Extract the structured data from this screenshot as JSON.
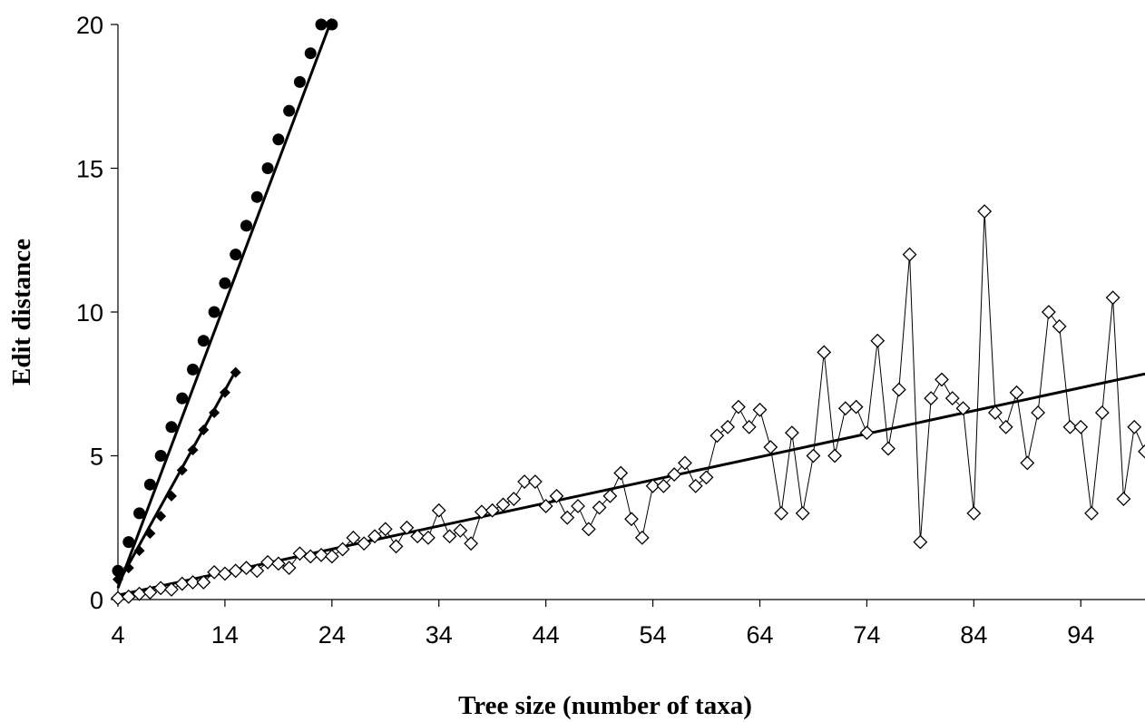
{
  "chart_data": {
    "type": "scatter",
    "xlabel": "Tree size (number of taxa)",
    "ylabel": "Edit distance",
    "xlim": [
      4,
      100
    ],
    "ylim": [
      0,
      20
    ],
    "xticks": [
      4,
      14,
      24,
      34,
      44,
      54,
      64,
      74,
      84,
      94
    ],
    "yticks": [
      0,
      5,
      10,
      15,
      20
    ],
    "grid": false,
    "legend": "none",
    "series": [
      {
        "marker": "filled-circle",
        "color": "#000000",
        "x": [
          4,
          5,
          6,
          7,
          8,
          9,
          10,
          11,
          12,
          13,
          14,
          15,
          16,
          17,
          18,
          19,
          20,
          21,
          22,
          23,
          24
        ],
        "y": [
          1,
          2,
          3,
          4,
          5,
          6,
          7,
          8,
          9,
          10,
          11,
          12,
          13,
          14,
          15,
          16,
          17,
          18,
          19,
          20,
          20
        ],
        "trendline": {
          "x": [
            4,
            24
          ],
          "y": [
            0.4,
            20.2
          ]
        }
      },
      {
        "marker": "filled-diamond",
        "color": "#000000",
        "x": [
          4,
          5,
          6,
          7,
          8,
          9,
          10,
          11,
          12,
          13,
          14,
          15
        ],
        "y": [
          0.7,
          1.1,
          1.7,
          2.3,
          2.9,
          3.6,
          4.5,
          5.2,
          5.9,
          6.5,
          7.2,
          7.9
        ],
        "trendline": {
          "x": [
            4,
            15
          ],
          "y": [
            0.55,
            7.95
          ]
        }
      },
      {
        "marker": "open-diamond",
        "color": "#000000",
        "x": [
          4,
          5,
          6,
          7,
          8,
          9,
          10,
          11,
          12,
          13,
          14,
          15,
          16,
          17,
          18,
          19,
          20,
          21,
          22,
          23,
          24,
          25,
          26,
          27,
          28,
          29,
          30,
          31,
          32,
          33,
          34,
          35,
          36,
          37,
          38,
          39,
          40,
          41,
          42,
          43,
          44,
          45,
          46,
          47,
          48,
          49,
          50,
          51,
          52,
          53,
          54,
          55,
          56,
          57,
          58,
          59,
          60,
          61,
          62,
          63,
          64,
          65,
          66,
          67,
          68,
          69,
          70,
          71,
          72,
          73,
          74,
          75,
          76,
          77,
          78,
          79,
          80,
          81,
          82,
          83,
          84,
          85,
          86,
          87,
          88,
          89,
          90,
          91,
          92,
          93,
          94,
          95,
          96,
          97,
          98,
          99,
          100
        ],
        "y": [
          0.05,
          0.1,
          0.2,
          0.25,
          0.4,
          0.35,
          0.55,
          0.6,
          0.6,
          0.95,
          0.9,
          1.0,
          1.1,
          1.0,
          1.3,
          1.25,
          1.1,
          1.6,
          1.5,
          1.55,
          1.5,
          1.75,
          2.15,
          1.95,
          2.2,
          2.45,
          1.85,
          2.5,
          2.2,
          2.15,
          3.1,
          2.2,
          2.4,
          1.95,
          3.05,
          3.1,
          3.3,
          3.5,
          4.1,
          4.1,
          3.25,
          3.6,
          2.85,
          3.25,
          2.45,
          3.2,
          3.6,
          4.4,
          2.8,
          2.15,
          3.95,
          3.95,
          4.35,
          4.75,
          3.95,
          4.25,
          5.7,
          6.0,
          6.7,
          6.0,
          6.6,
          5.3,
          3.0,
          5.8,
          3.0,
          5.0,
          8.6,
          5.0,
          6.65,
          6.7,
          5.8,
          9.0,
          5.25,
          7.3,
          12.0,
          2.0,
          7.0,
          7.65,
          7.0,
          6.65,
          3.0,
          13.5,
          6.5,
          6.0,
          7.2,
          4.75,
          6.5,
          10.0,
          9.5,
          6.0,
          6.0,
          3.0,
          6.5,
          10.5,
          3.5,
          6.0,
          5.15
        ],
        "trendline": {
          "x": [
            4,
            100
          ],
          "y": [
            0.15,
            7.85
          ]
        }
      }
    ]
  }
}
